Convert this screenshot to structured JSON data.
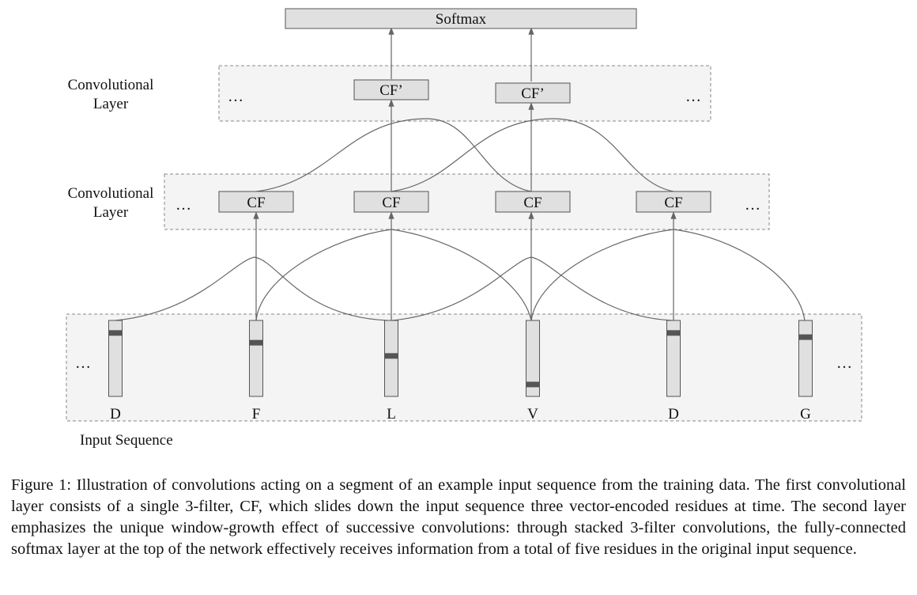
{
  "diagram": {
    "softmax_label": "Softmax",
    "layer2": {
      "label_line1": "Convolutional",
      "label_line2": "Layer",
      "ellipsis_left": "…",
      "ellipsis_right": "…",
      "filters": [
        "CF’",
        "CF’"
      ]
    },
    "layer1": {
      "label_line1": "Convolutional",
      "label_line2": "Layer",
      "ellipsis_left": "…",
      "ellipsis_right": "…",
      "filters": [
        "CF",
        "CF",
        "CF",
        "CF"
      ]
    },
    "input": {
      "label": "Input Sequence",
      "ellipsis_left": "…",
      "ellipsis_right": "…",
      "residues": [
        "D",
        "F",
        "L",
        "V",
        "D",
        "G"
      ],
      "active_index_fraction": [
        0.14,
        0.28,
        0.47,
        0.88,
        0.14,
        0.2
      ]
    },
    "colors": {
      "box_fill": "#e0e0e0",
      "layer_fill": "#f4f4f4",
      "marker": "#555555",
      "line": "#666666"
    }
  },
  "caption": "Figure 1: Illustration of convolutions acting on a segment of an example input sequence from the training data. The first convolutional layer consists of a single 3-filter, CF, which slides down the input sequence three vector-encoded residues at time. The second layer emphasizes the unique window-growth effect of successive convolutions: through stacked 3-filter convolutions, the fully-connected softmax layer at the top of the network effectively receives information from a total of five residues in the original input sequence."
}
